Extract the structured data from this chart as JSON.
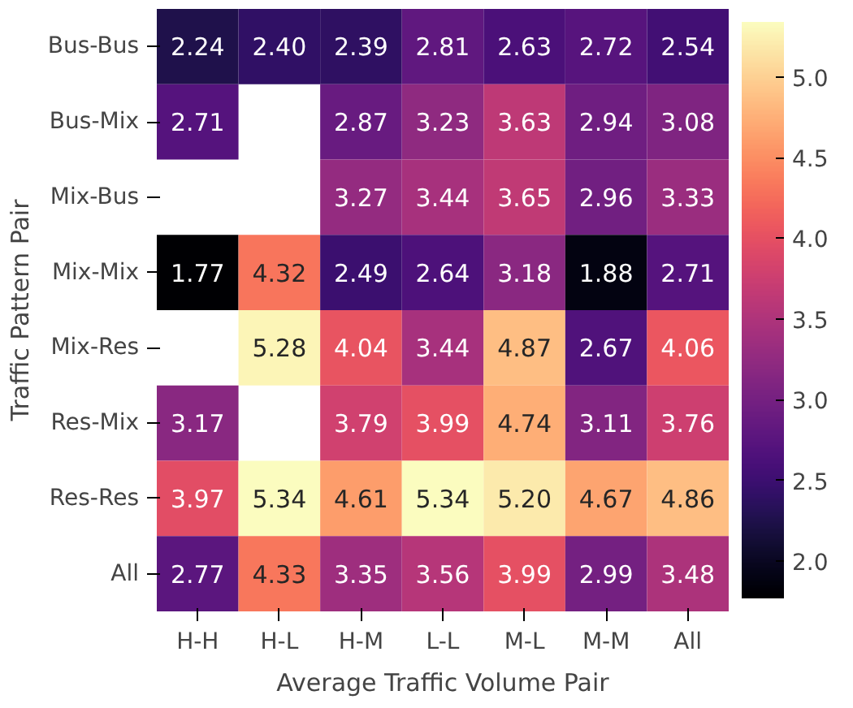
{
  "chart_data": {
    "type": "heatmap",
    "xlabel": "Average Traffic Volume Pair",
    "ylabel": "Traffic Pattern Pair",
    "categories": [
      "H-H",
      "H-L",
      "H-M",
      "L-L",
      "M-L",
      "M-M",
      "All"
    ],
    "y_categories": [
      "Bus-Bus",
      "Bus-Mix",
      "Mix-Bus",
      "Mix-Mix",
      "Mix-Res",
      "Res-Mix",
      "Res-Res",
      "All"
    ],
    "cells": [
      [
        2.24,
        2.4,
        2.39,
        2.81,
        2.63,
        2.72,
        2.54
      ],
      [
        2.71,
        null,
        2.87,
        3.23,
        3.63,
        2.94,
        3.08
      ],
      [
        null,
        null,
        3.27,
        3.44,
        3.65,
        2.96,
        3.33
      ],
      [
        1.77,
        4.32,
        2.49,
        2.64,
        3.18,
        1.88,
        2.71
      ],
      [
        null,
        5.28,
        4.04,
        3.44,
        4.87,
        2.67,
        4.06
      ],
      [
        3.17,
        null,
        3.79,
        3.99,
        4.74,
        3.11,
        3.76
      ],
      [
        3.97,
        5.34,
        4.61,
        5.34,
        5.2,
        4.67,
        4.86
      ],
      [
        2.77,
        4.33,
        3.35,
        3.56,
        3.99,
        2.99,
        3.48
      ]
    ],
    "clim": [
      1.77,
      5.34
    ],
    "cticks": [
      {
        "value": 2,
        "label": "2.0"
      },
      {
        "value": 2.5,
        "label": "2.5"
      },
      {
        "value": 3,
        "label": "3.0"
      },
      {
        "value": 3.5,
        "label": "3.5"
      },
      {
        "value": 4,
        "label": "4.0"
      },
      {
        "value": 4.5,
        "label": "4.5"
      },
      {
        "value": 5,
        "label": "5.0"
      }
    ],
    "cell_labels": [
      [
        "2.24",
        "2.40",
        "2.39",
        "2.81",
        "2.63",
        "2.72",
        "2.54"
      ],
      [
        "2.71",
        null,
        "2.87",
        "3.23",
        "3.63",
        "2.94",
        "3.08"
      ],
      [
        null,
        null,
        "3.27",
        "3.44",
        "3.65",
        "2.96",
        "3.33"
      ],
      [
        "1.77",
        "4.32",
        "2.49",
        "2.64",
        "3.18",
        "1.88",
        "2.71"
      ],
      [
        null,
        "5.28",
        "4.04",
        "3.44",
        "4.87",
        "2.67",
        "4.06"
      ],
      [
        "3.17",
        null,
        "3.79",
        "3.99",
        "4.74",
        "3.11",
        "3.76"
      ],
      [
        "3.97",
        "5.34",
        "4.61",
        "5.34",
        "5.20",
        "4.67",
        "4.86"
      ],
      [
        "2.77",
        "4.33",
        "3.35",
        "3.56",
        "3.99",
        "2.99",
        "3.48"
      ]
    ]
  }
}
